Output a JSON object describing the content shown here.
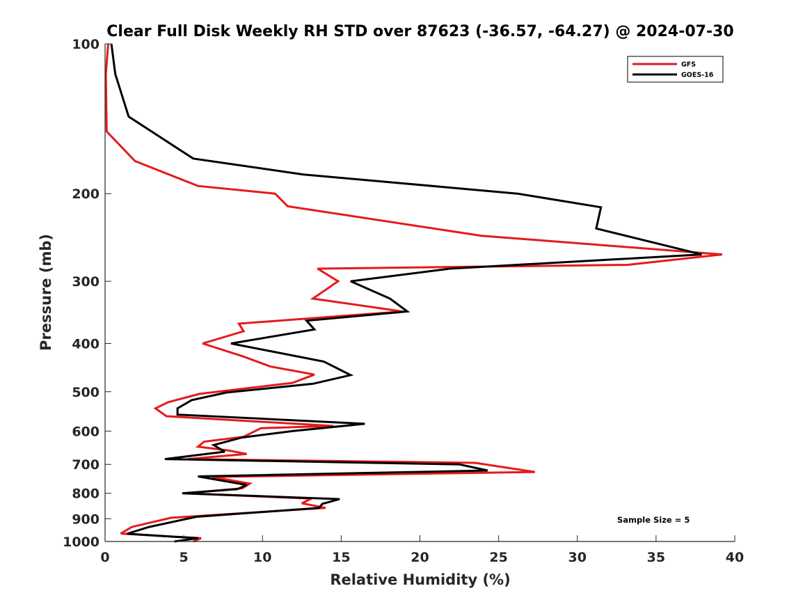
{
  "chart_data": {
    "type": "line",
    "title": "Clear Full Disk Weekly RH STD over 87623 (-36.57, -64.27) @ 2024-07-30",
    "xlabel": "Relative Humidity (%)",
    "ylabel": "Pressure (mb)",
    "xlim": [
      0,
      40
    ],
    "ylim": [
      100,
      1000
    ],
    "yscale": "log",
    "y_reversed": true,
    "xticks": [
      0,
      5,
      10,
      15,
      20,
      25,
      30,
      35,
      40
    ],
    "yticks": [
      100,
      200,
      300,
      400,
      500,
      600,
      700,
      800,
      900,
      1000
    ],
    "legend_position": "top-right",
    "annotation": "Sample Size = 5",
    "series": [
      {
        "name": "GFS",
        "color": "#e41a1c",
        "points": [
          [
            0.2,
            100
          ],
          [
            0.05,
            115
          ],
          [
            0.1,
            150
          ],
          [
            1.9,
            172
          ],
          [
            5.9,
            193
          ],
          [
            10.8,
            200
          ],
          [
            11.6,
            212
          ],
          [
            23.9,
            243
          ],
          [
            39.2,
            265
          ],
          [
            33.2,
            278
          ],
          [
            13.5,
            283
          ],
          [
            14.8,
            300
          ],
          [
            13.2,
            325
          ],
          [
            18.9,
            345
          ],
          [
            8.5,
            365
          ],
          [
            8.8,
            378
          ],
          [
            6.2,
            400
          ],
          [
            8.8,
            425
          ],
          [
            10.5,
            445
          ],
          [
            13.3,
            462
          ],
          [
            11.9,
            480
          ],
          [
            6.0,
            505
          ],
          [
            4.0,
            525
          ],
          [
            3.2,
            540
          ],
          [
            3.9,
            560
          ],
          [
            14.5,
            586
          ],
          [
            9.9,
            592
          ],
          [
            8.8,
            616
          ],
          [
            6.3,
            630
          ],
          [
            5.9,
            645
          ],
          [
            7.8,
            656
          ],
          [
            9.0,
            667
          ],
          [
            5.2,
            683
          ],
          [
            23.5,
            695
          ],
          [
            27.3,
            725
          ],
          [
            6.8,
            742
          ],
          [
            9.2,
            765
          ],
          [
            8.7,
            782
          ],
          [
            5.1,
            800
          ],
          [
            13.1,
            820
          ],
          [
            12.5,
            838
          ],
          [
            14.0,
            856
          ],
          [
            4.2,
            896
          ],
          [
            1.7,
            935
          ],
          [
            1.0,
            964
          ],
          [
            6.1,
            985
          ],
          [
            5.6,
            1000
          ]
        ]
      },
      {
        "name": "GOES-16",
        "color": "#000000",
        "points": [
          [
            0.4,
            100
          ],
          [
            0.65,
            115
          ],
          [
            1.5,
            140
          ],
          [
            5.6,
            170
          ],
          [
            12.6,
            183
          ],
          [
            26.2,
            200
          ],
          [
            31.5,
            213
          ],
          [
            31.2,
            235
          ],
          [
            37.9,
            265
          ],
          [
            21.9,
            283
          ],
          [
            15.6,
            300
          ],
          [
            18.1,
            325
          ],
          [
            19.2,
            345
          ],
          [
            12.8,
            360
          ],
          [
            13.3,
            375
          ],
          [
            8.0,
            400
          ],
          [
            13.9,
            435
          ],
          [
            15.6,
            463
          ],
          [
            13.2,
            482
          ],
          [
            7.7,
            502
          ],
          [
            5.5,
            520
          ],
          [
            4.6,
            540
          ],
          [
            4.6,
            556
          ],
          [
            16.5,
            580
          ],
          [
            11.9,
            600
          ],
          [
            8.7,
            618
          ],
          [
            6.9,
            640
          ],
          [
            7.6,
            660
          ],
          [
            3.8,
            683
          ],
          [
            22.5,
            700
          ],
          [
            24.3,
            720
          ],
          [
            5.9,
            740
          ],
          [
            9.0,
            770
          ],
          [
            8.4,
            785
          ],
          [
            4.9,
            800
          ],
          [
            14.9,
            822
          ],
          [
            13.8,
            840
          ],
          [
            13.6,
            856
          ],
          [
            5.8,
            892
          ],
          [
            2.8,
            935
          ],
          [
            1.4,
            965
          ],
          [
            5.9,
            985
          ],
          [
            4.4,
            1000
          ]
        ]
      }
    ]
  }
}
